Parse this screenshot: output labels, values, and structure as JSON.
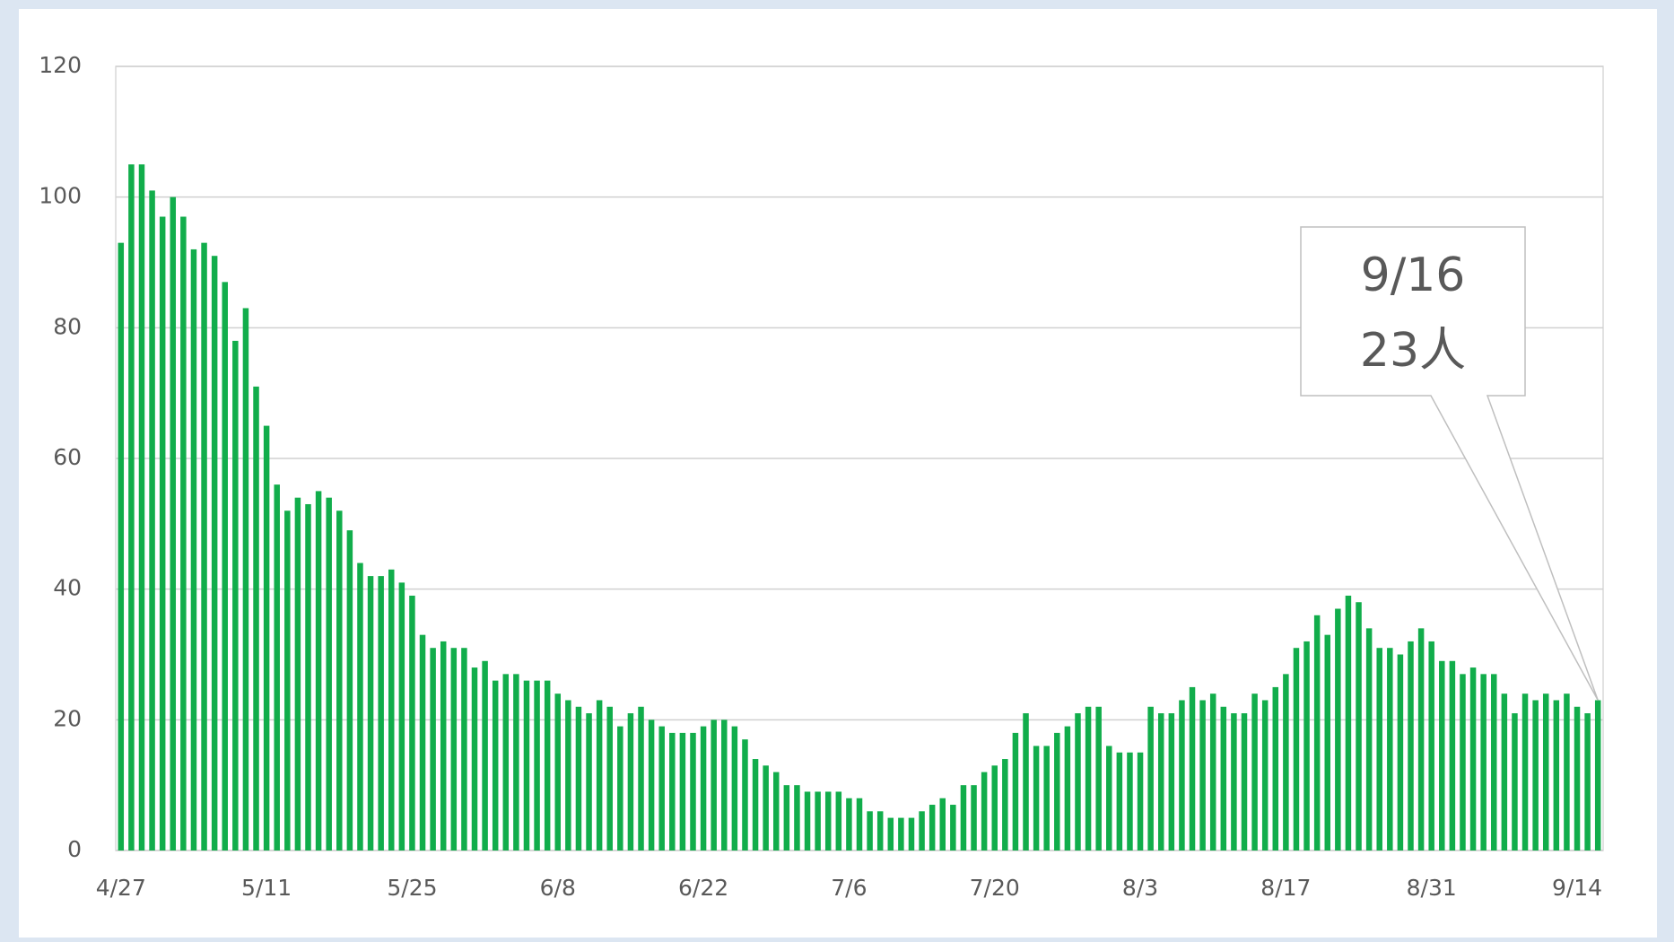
{
  "chart_data": {
    "type": "bar",
    "categories": [
      "4/27",
      null,
      null,
      null,
      null,
      null,
      null,
      null,
      null,
      null,
      null,
      null,
      null,
      null,
      "5/11",
      null,
      null,
      null,
      null,
      null,
      null,
      null,
      null,
      null,
      null,
      null,
      null,
      null,
      "5/25",
      null,
      null,
      null,
      null,
      null,
      null,
      null,
      null,
      null,
      null,
      null,
      null,
      null,
      "6/8",
      null,
      null,
      null,
      null,
      null,
      null,
      null,
      null,
      null,
      null,
      null,
      null,
      null,
      "6/22",
      null,
      null,
      null,
      null,
      null,
      null,
      null,
      null,
      null,
      null,
      null,
      null,
      null,
      "7/6",
      null,
      null,
      null,
      null,
      null,
      null,
      null,
      null,
      null,
      null,
      null,
      null,
      null,
      "7/20",
      null,
      null,
      null,
      null,
      null,
      null,
      null,
      null,
      null,
      null,
      null,
      null,
      null,
      "8/3",
      null,
      null,
      null,
      null,
      null,
      null,
      null,
      null,
      null,
      null,
      null,
      null,
      null,
      "8/17",
      null,
      null,
      null,
      null,
      null,
      null,
      null,
      null,
      null,
      null,
      null,
      null,
      null,
      "8/31",
      null,
      null,
      null,
      null,
      null,
      null,
      null,
      null,
      null,
      null,
      null,
      null,
      null,
      "9/14",
      null,
      null
    ],
    "values": [
      93,
      105,
      105,
      101,
      97,
      100,
      97,
      92,
      93,
      91,
      87,
      78,
      83,
      71,
      65,
      56,
      52,
      54,
      53,
      55,
      54,
      52,
      49,
      44,
      42,
      42,
      43,
      41,
      39,
      33,
      31,
      32,
      31,
      31,
      28,
      29,
      26,
      27,
      27,
      26,
      26,
      26,
      24,
      23,
      22,
      21,
      23,
      22,
      19,
      21,
      22,
      20,
      19,
      18,
      18,
      18,
      19,
      20,
      20,
      19,
      17,
      14,
      13,
      12,
      10,
      10,
      9,
      9,
      9,
      9,
      8,
      8,
      6,
      6,
      5,
      5,
      5,
      6,
      7,
      8,
      7,
      10,
      10,
      12,
      13,
      14,
      18,
      21,
      16,
      16,
      18,
      19,
      21,
      22,
      22,
      16,
      15,
      15,
      15,
      22,
      21,
      21,
      23,
      25,
      23,
      24,
      22,
      21,
      21,
      24,
      23,
      25,
      27,
      31,
      32,
      36,
      33,
      37,
      39,
      38,
      34,
      31,
      31,
      30,
      32,
      34,
      32,
      29,
      29,
      27,
      28,
      27,
      27,
      24,
      21,
      24,
      23,
      24,
      23,
      24,
      22,
      21,
      23
    ],
    "color": "#11ad4b",
    "ylim": [
      0,
      120
    ],
    "yticks": [
      0,
      20,
      40,
      60,
      80,
      100,
      120
    ],
    "grid": true,
    "annotation": [
      "9/16",
      "23人"
    ]
  }
}
